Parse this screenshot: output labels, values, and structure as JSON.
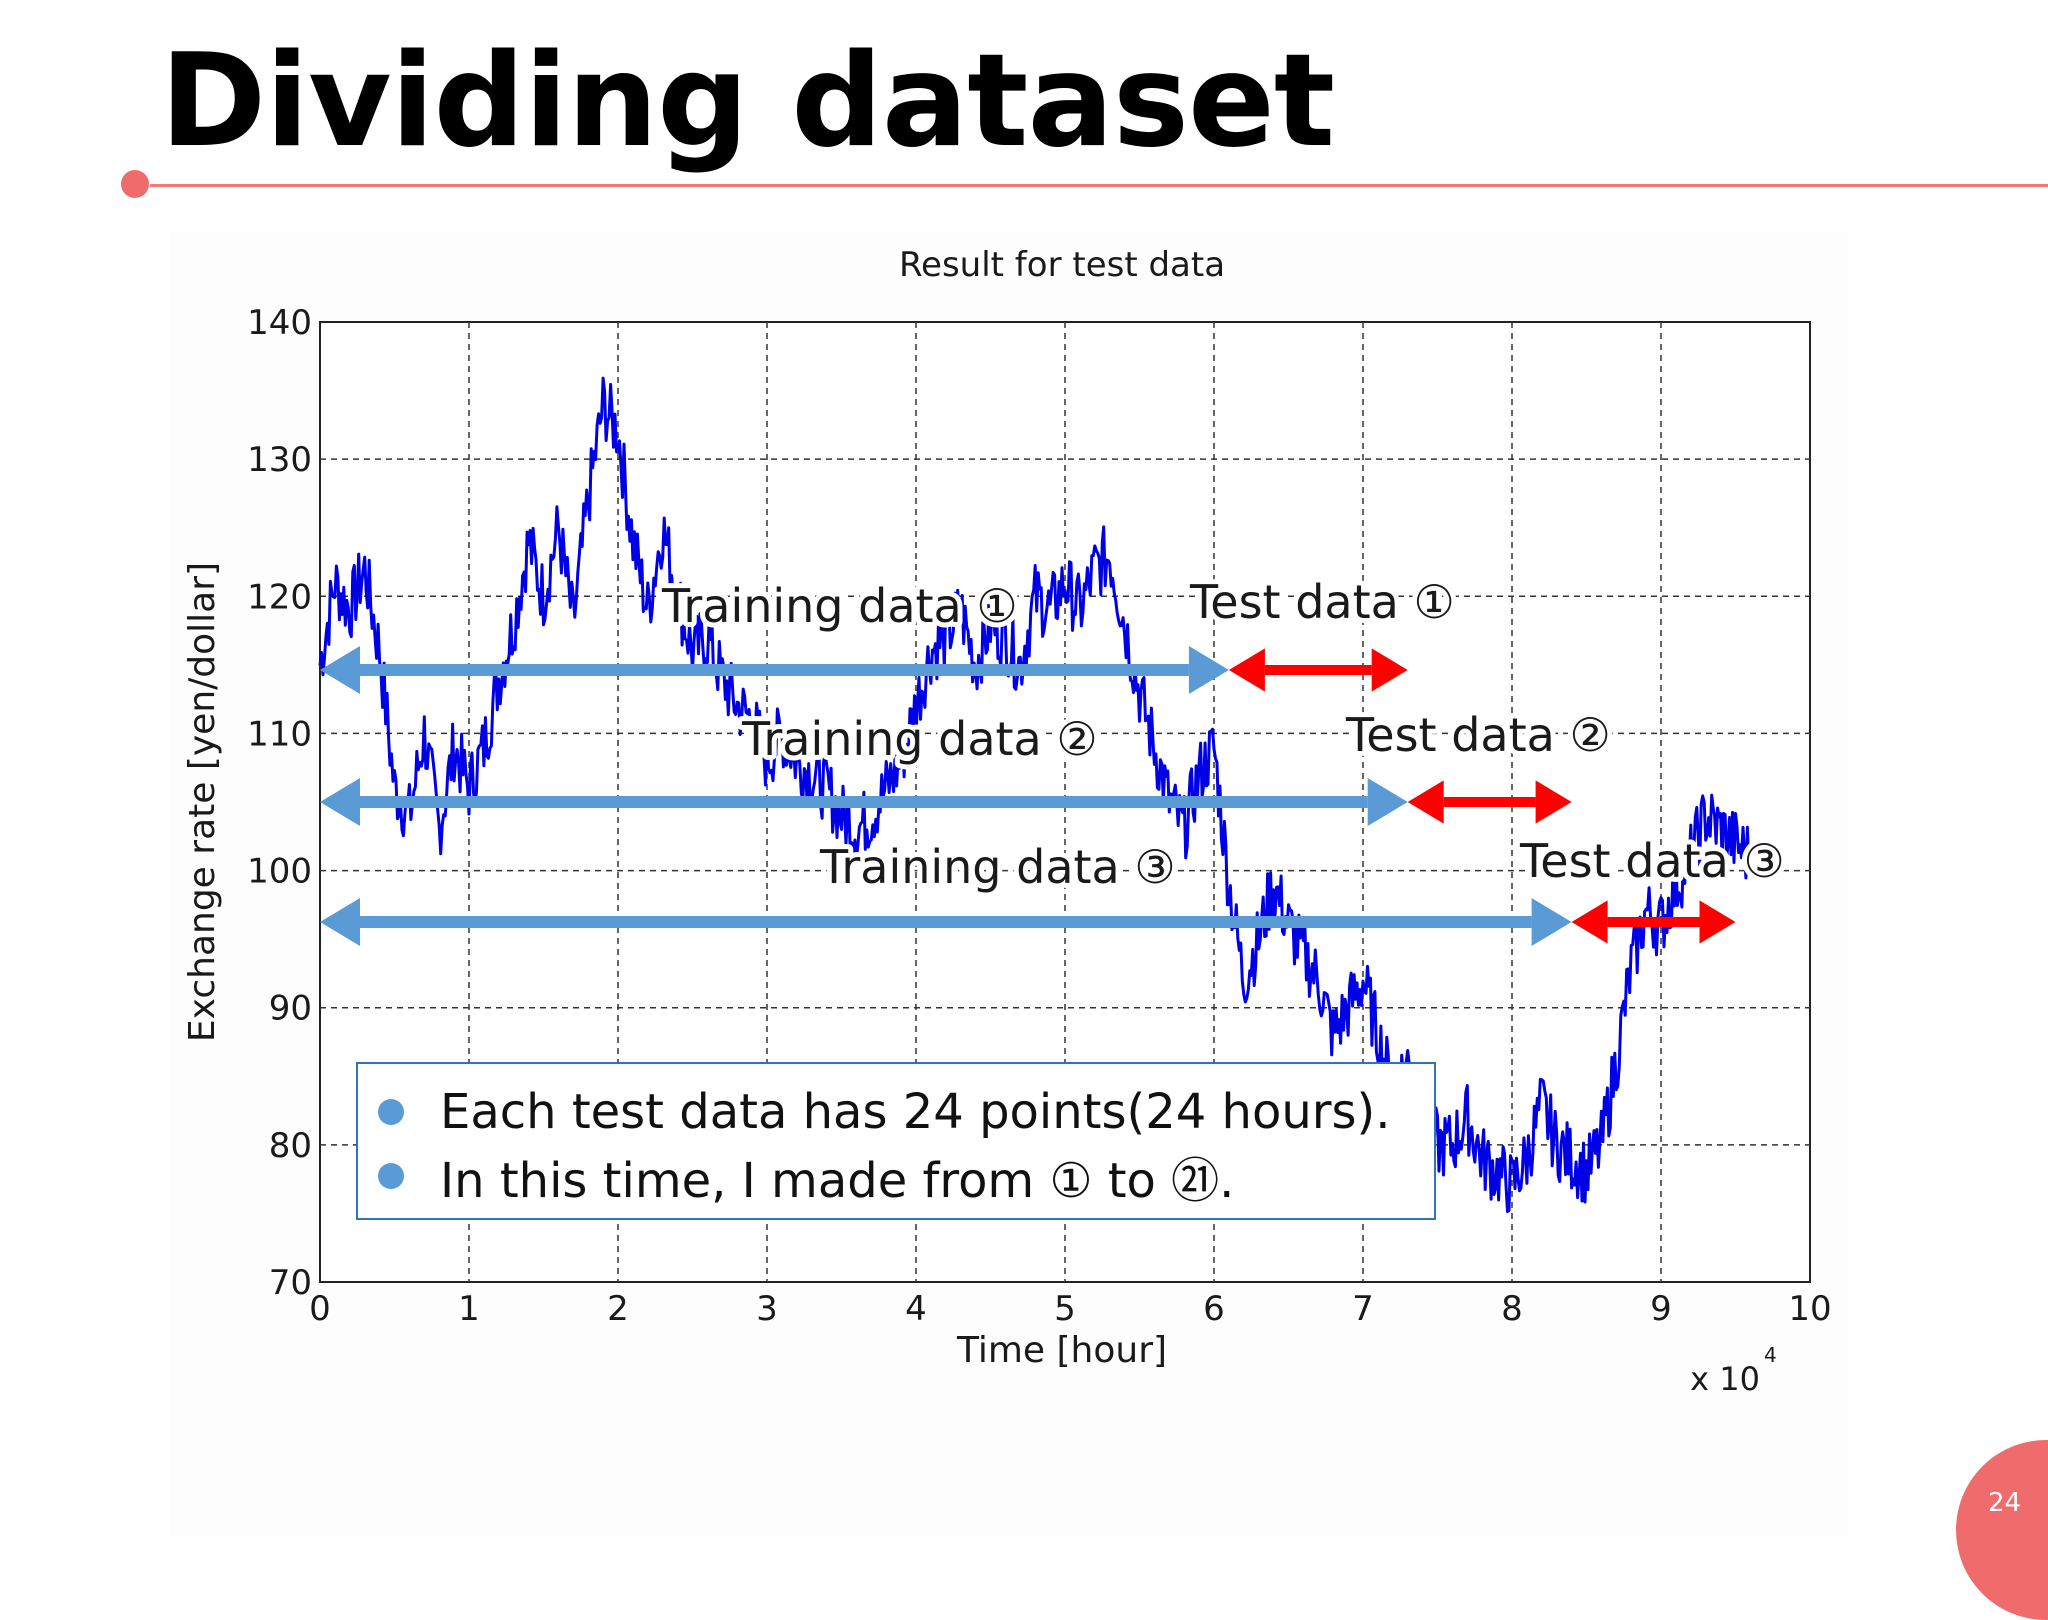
{
  "slide": {
    "title": "Dividing dataset",
    "page_number": "24"
  },
  "colors": {
    "accent": "#f06b6b",
    "series": "#0000e6",
    "training_arrow": "#5b9bd5",
    "test_arrow": "#ff0000",
    "info_border": "#2f74b5"
  },
  "annotations": {
    "training_1": "Training data ①",
    "training_2": "Training data ②",
    "training_3": "Training data ③",
    "test_1": "Test data ①",
    "test_2": "Test data ②",
    "test_3": "Test data ③"
  },
  "info_box": {
    "bullets": [
      "Each test data has 24 points(24 hours).",
      "In this time, I made from ① to ㉑."
    ]
  },
  "chart_data": {
    "type": "line",
    "title": "Result for test data",
    "xlabel": "Time [hour]",
    "ylabel": "Exchange rate [yen/dollar]",
    "x_multiplier_label": "x 10",
    "x_multiplier_exponent": "4",
    "xlim": [
      0,
      10
    ],
    "ylim": [
      70,
      140
    ],
    "x_ticks": [
      "0",
      "1",
      "2",
      "3",
      "4",
      "5",
      "6",
      "7",
      "8",
      "9",
      "10"
    ],
    "y_ticks": [
      "70",
      "80",
      "90",
      "100",
      "110",
      "120",
      "130",
      "140"
    ],
    "grid": true,
    "series": [
      {
        "x": [
          0,
          0.1,
          0.2,
          0.3,
          0.4,
          0.5,
          0.6,
          0.7,
          0.8,
          0.9,
          1.0,
          1.1,
          1.2,
          1.3,
          1.4,
          1.5,
          1.6,
          1.7,
          1.8,
          1.9,
          2.0,
          2.1,
          2.2,
          2.3,
          2.4,
          2.5,
          2.6,
          2.7,
          2.8,
          2.9,
          3.0,
          3.1,
          3.2,
          3.3,
          3.4,
          3.5,
          3.6,
          3.7,
          3.8,
          3.9,
          4.0,
          4.1,
          4.2,
          4.3,
          4.4,
          4.5,
          4.6,
          4.7,
          4.8,
          4.9,
          5.0,
          5.1,
          5.2,
          5.3,
          5.4,
          5.5,
          5.6,
          5.7,
          5.8,
          5.9,
          6.0,
          6.1,
          6.2,
          6.3,
          6.4,
          6.5,
          6.6,
          6.7,
          6.8,
          6.9,
          7.0,
          7.1,
          7.2,
          7.3,
          7.4,
          7.5,
          7.6,
          7.7,
          7.8,
          7.9,
          8.0,
          8.1,
          8.2,
          8.3,
          8.4,
          8.5,
          8.6,
          8.7,
          8.8,
          8.9,
          9.0,
          9.1,
          9.2,
          9.3,
          9.4,
          9.5,
          9.6
        ],
        "y": [
          115,
          121,
          119,
          122,
          116,
          106,
          104,
          110,
          103,
          109,
          106,
          109,
          114,
          118,
          124,
          120,
          125,
          118,
          127,
          134,
          132,
          124,
          119,
          125,
          120,
          116,
          117,
          114,
          112,
          111,
          108,
          110,
          108,
          107,
          106,
          104,
          103,
          104,
          106,
          108,
          112,
          116,
          117,
          119,
          115,
          118,
          117,
          115,
          120,
          119,
          121,
          119,
          122,
          123,
          118,
          113,
          109,
          105,
          103,
          107,
          109,
          99,
          92,
          95,
          99,
          96,
          94,
          92,
          88,
          90,
          92,
          88,
          84,
          86,
          83,
          80,
          80,
          82,
          79,
          78,
          77,
          79,
          83,
          80,
          79,
          78,
          80,
          86,
          93,
          97,
          96,
          99,
          101,
          104,
          103,
          102,
          101
        ]
      }
    ],
    "training_ranges": [
      [
        0,
        6.1
      ],
      [
        0,
        7.3
      ],
      [
        0,
        8.4
      ]
    ],
    "test_ranges": [
      [
        6.1,
        7.3
      ],
      [
        7.3,
        8.4
      ],
      [
        8.4,
        9.5
      ]
    ]
  }
}
